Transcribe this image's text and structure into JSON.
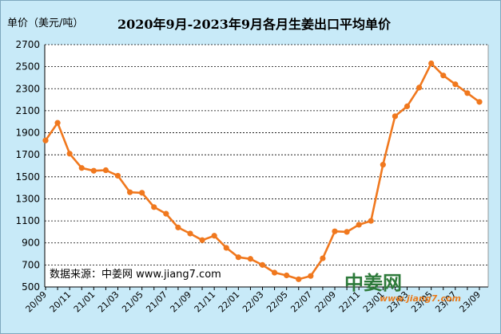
{
  "title": "2020年9月-2023年9月各月生姜出口平均单价",
  "unit_label": "单价（美元/吨）",
  "source_text": "数据来源：中姜网 www.jiang7.com",
  "watermark": {
    "brand": "中姜网",
    "url": "www.jiang7.com"
  },
  "colors": {
    "background": "#c8eaf8",
    "plot": "#ffffff",
    "line": "#f0781e",
    "grid": "#000000"
  },
  "chart_data": {
    "type": "line",
    "title": "2020年9月-2023年9月各月生姜出口平均单价",
    "ylabel": "单价（美元/吨）",
    "xlabel": "",
    "ylim": [
      500,
      2700
    ],
    "yticks": [
      500,
      700,
      900,
      1100,
      1300,
      1500,
      1700,
      1900,
      2100,
      2300,
      2500,
      2700
    ],
    "grid": "horizontal dashed",
    "x": [
      "20/09",
      "20/10",
      "20/11",
      "20/12",
      "21/01",
      "21/02",
      "21/03",
      "21/04",
      "21/05",
      "21/06",
      "21/07",
      "21/08",
      "21/09",
      "21/10",
      "21/11",
      "21/12",
      "22/01",
      "22/02",
      "22/03",
      "22/04",
      "22/05",
      "22/06",
      "22/07",
      "22/08",
      "22/09",
      "22/10",
      "22/11",
      "22/12",
      "23/01",
      "23/02",
      "23/03",
      "23/04",
      "23/05",
      "23/06",
      "23/07",
      "23/08",
      "23/09"
    ],
    "x_tick_labels": [
      "20/09",
      "20/11",
      "21/01",
      "21/03",
      "21/05",
      "21/07",
      "21/09",
      "21/11",
      "22/01",
      "22/03",
      "22/05",
      "22/07",
      "22/09",
      "22/11",
      "23/01",
      "23/03",
      "23/05",
      "23/07",
      "23/09"
    ],
    "values": [
      1830,
      1990,
      1710,
      1580,
      1555,
      1560,
      1510,
      1360,
      1355,
      1225,
      1165,
      1040,
      985,
      925,
      965,
      855,
      770,
      755,
      700,
      630,
      605,
      570,
      600,
      760,
      1005,
      1000,
      1065,
      1100,
      1610,
      2050,
      2140,
      2310,
      2530,
      2420,
      2340,
      2260,
      2180
    ],
    "series": [
      {
        "name": "",
        "color": "#f0781e"
      }
    ]
  }
}
